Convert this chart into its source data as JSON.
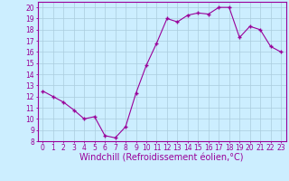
{
  "x": [
    0,
    1,
    2,
    3,
    4,
    5,
    6,
    7,
    8,
    9,
    10,
    11,
    12,
    13,
    14,
    15,
    16,
    17,
    18,
    19,
    20,
    21,
    22,
    23
  ],
  "y": [
    12.5,
    12.0,
    11.5,
    10.8,
    10.0,
    10.2,
    8.5,
    8.3,
    9.3,
    12.3,
    14.8,
    16.8,
    19.0,
    18.7,
    19.3,
    19.5,
    19.4,
    20.0,
    20.0,
    17.3,
    18.3,
    18.0,
    16.5,
    16.0
  ],
  "line_color": "#990099",
  "marker": "+",
  "marker_size": 3,
  "xlabel": "Windchill (Refroidissement éolien,°C)",
  "xlim": [
    -0.5,
    23.5
  ],
  "ylim": [
    8,
    20.5
  ],
  "yticks": [
    8,
    9,
    10,
    11,
    12,
    13,
    14,
    15,
    16,
    17,
    18,
    19,
    20
  ],
  "xticks": [
    0,
    1,
    2,
    3,
    4,
    5,
    6,
    7,
    8,
    9,
    10,
    11,
    12,
    13,
    14,
    15,
    16,
    17,
    18,
    19,
    20,
    21,
    22,
    23
  ],
  "bg_color": "#cceeff",
  "grid_color": "#aaccdd",
  "tick_label_fontsize": 5.5,
  "xlabel_fontsize": 7.0,
  "lw": 0.8
}
